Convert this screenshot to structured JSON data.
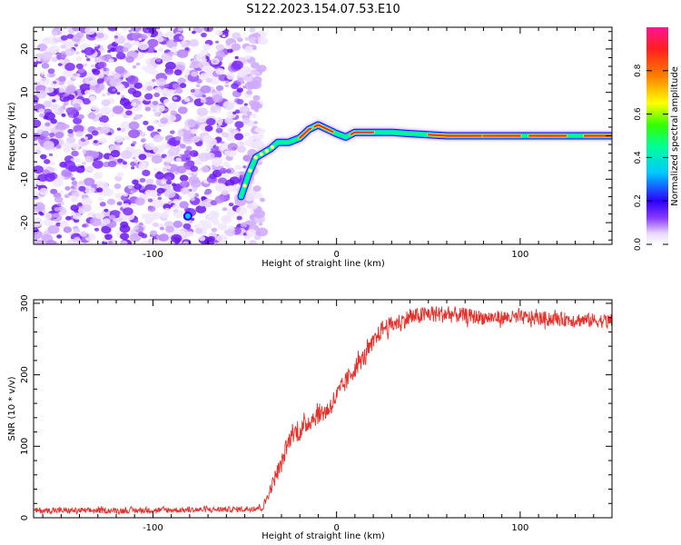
{
  "title": "S122.2023.154.07.53.E10",
  "colors": {
    "snr_line": "#e8302a",
    "ridge_colormap": [
      "#ffffff",
      "#f0e4ff",
      "#c79cff",
      "#8a3cff",
      "#2c00ff",
      "#00c8ff",
      "#00ff66",
      "#ffff00",
      "#ff6a00",
      "#ff1f1f",
      "#ff1493"
    ],
    "noise_purple": "#7b2cff"
  },
  "chart_data": [
    {
      "type": "heatmap",
      "xlabel": "Height of straight line (km)",
      "ylabel": "Frequency (Hz)",
      "xlim": [
        -165,
        150
      ],
      "ylim": [
        -25,
        25
      ],
      "x_ticks": [
        -100,
        0,
        100
      ],
      "y_ticks": [
        -20,
        -10,
        0,
        10,
        20
      ],
      "colorbar": {
        "label": "Normalized spectral amplitude",
        "range": [
          0,
          1
        ],
        "ticks": [
          "0.0",
          "0.2",
          "0.4",
          "0.6",
          "0.8"
        ]
      },
      "noise_region_x": [
        -165,
        -48
      ],
      "ridge": {
        "x": [
          -52,
          -48,
          -44,
          -40,
          -36,
          -32,
          -26,
          -20,
          -15,
          -10,
          -5,
          0,
          5,
          10,
          15,
          20,
          30,
          40,
          60,
          80,
          100,
          120,
          150
        ],
        "y": [
          -14,
          -9,
          -5,
          -4,
          -3,
          -1.5,
          -1.5,
          -0.5,
          1.5,
          2.5,
          1.5,
          0.5,
          -0.3,
          0.8,
          0.8,
          0.8,
          0.8,
          0.5,
          0,
          0,
          0,
          0,
          0
        ]
      },
      "spots": [
        {
          "x": -81,
          "y": -18.5
        }
      ]
    },
    {
      "type": "line",
      "xlabel": "Height of straight line (km)",
      "ylabel": "SNR (10 * v/v)",
      "xlim": [
        -165,
        150
      ],
      "ylim": [
        0,
        305
      ],
      "x_ticks": [
        -100,
        0,
        100
      ],
      "y_ticks": [
        0,
        100,
        200,
        300
      ],
      "series": [
        {
          "x": [
            -165,
            -120,
            -80,
            -50,
            -40,
            -36,
            -33,
            -30,
            -27,
            -24,
            -20,
            -15,
            -10,
            -5,
            0,
            5,
            10,
            15,
            20,
            25,
            30,
            35,
            40,
            50,
            60,
            80,
            100,
            120,
            150
          ],
          "y": [
            10,
            10,
            11,
            12,
            15,
            40,
            60,
            75,
            100,
            120,
            120,
            135,
            145,
            150,
            170,
            190,
            210,
            225,
            245,
            265,
            270,
            275,
            280,
            285,
            285,
            280,
            280,
            278,
            275
          ],
          "noise_amplitude": [
            4,
            4,
            4,
            4,
            6,
            8,
            12,
            12,
            12,
            14,
            14,
            14,
            14,
            14,
            14,
            14,
            14,
            12,
            12,
            12,
            12,
            12,
            12,
            12,
            12,
            10,
            10,
            10,
            10
          ]
        }
      ]
    }
  ]
}
